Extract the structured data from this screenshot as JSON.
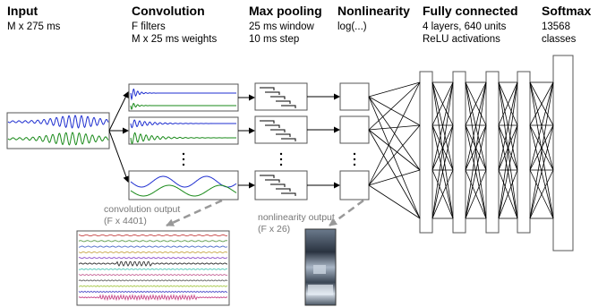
{
  "stages": {
    "input": {
      "title": "Input",
      "sub1": "M x 275 ms"
    },
    "convolution": {
      "title": "Convolution",
      "sub1": "F filters",
      "sub2": "M x 25 ms weights"
    },
    "maxpool": {
      "title": "Max pooling",
      "sub1": "25 ms window",
      "sub2": "10 ms step"
    },
    "nonlinearity": {
      "title": "Nonlinearity",
      "sub1": "log(...)"
    },
    "fully_connected": {
      "title": "Fully connected",
      "sub1": "4 layers, 640 units",
      "sub2": "ReLU activations"
    },
    "softmax": {
      "title": "Softmax",
      "sub1": "13568",
      "sub2": "classes"
    }
  },
  "outputs": {
    "convolution": {
      "line1": "convolution output",
      "line2": "(F x 4401)"
    },
    "nonlinearity": {
      "line1": "nonlinearity output",
      "line2": "(F x 26)"
    }
  },
  "colors": {
    "waveform_blue": "#1f2fd0",
    "waveform_green": "#1a8a1a",
    "arrow": "#000000",
    "dashed_arrow": "#999999"
  }
}
